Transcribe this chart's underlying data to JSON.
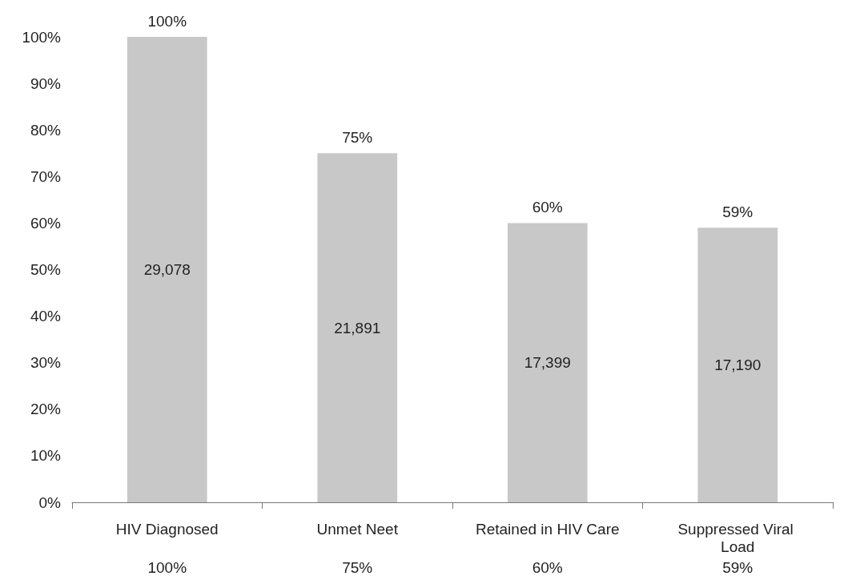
{
  "chart_data": {
    "type": "bar",
    "categories": [
      "HIV Diagnosed",
      "Unmet Neet",
      "Retained in HIV Care",
      "Suppressed Viral Load"
    ],
    "values": [
      100,
      75,
      60,
      59
    ],
    "color": "#c8c8c8",
    "value_labels": [
      "100%",
      "75%",
      "60%",
      "59%"
    ],
    "annotations": [
      "29,078",
      "21,891",
      "17,399",
      "17,190"
    ],
    "ylim": [
      0,
      100
    ],
    "yticks": [
      {
        "value": 0,
        "label": "0%"
      },
      {
        "value": 10,
        "label": "10%"
      },
      {
        "value": 20,
        "label": "20%"
      },
      {
        "value": 30,
        "label": "30%"
      },
      {
        "value": 40,
        "label": "40%"
      },
      {
        "value": 50,
        "label": "50%"
      },
      {
        "value": 60,
        "label": "60%"
      },
      {
        "value": 70,
        "label": "70%"
      },
      {
        "value": 80,
        "label": "80%"
      },
      {
        "value": 90,
        "label": "90%"
      },
      {
        "value": 100,
        "label": "100%"
      }
    ],
    "grid": false
  }
}
